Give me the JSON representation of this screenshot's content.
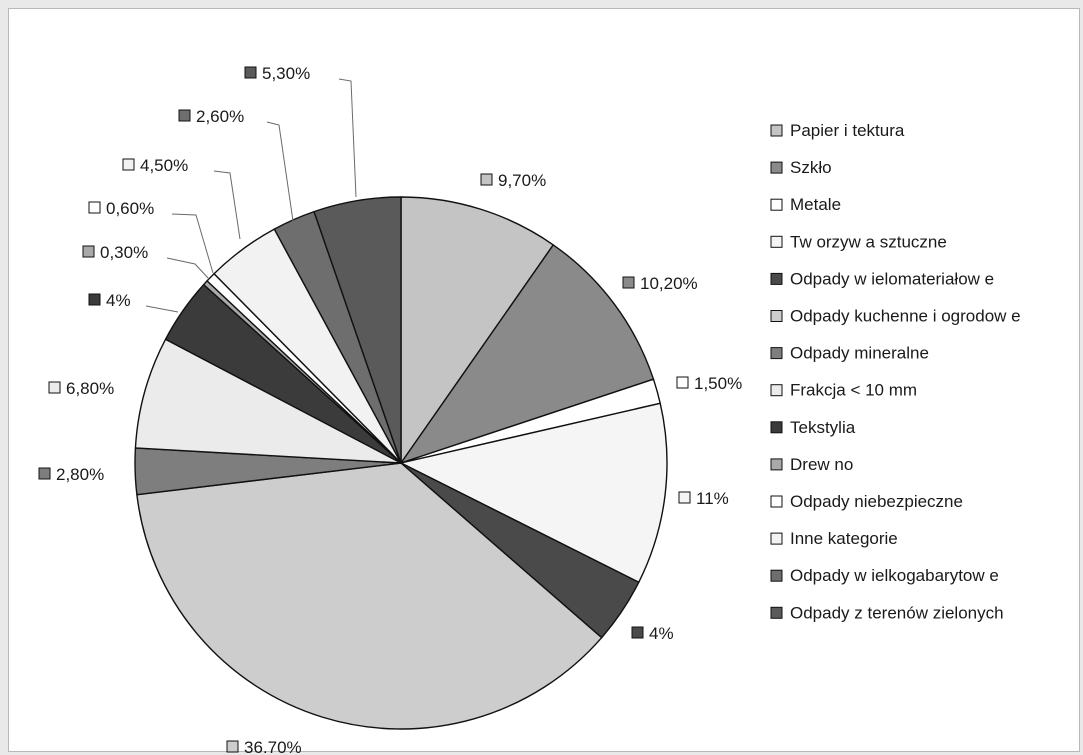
{
  "chart_data": {
    "type": "pie",
    "start_angle_deg": 0,
    "direction": "clockwise",
    "legend_position": "right",
    "slices": [
      {
        "name": "Papier i tektura",
        "value": 9.7,
        "label": "9,70%",
        "color": "#c4c4c4"
      },
      {
        "name": "Szkło",
        "value": 10.2,
        "label": "10,20%",
        "color": "#8a8a8a"
      },
      {
        "name": "Metale",
        "value": 1.5,
        "label": "1,50%",
        "color": "#ffffff"
      },
      {
        "name": "Tworzywa sztuczne",
        "value": 11,
        "label": "11%",
        "color": "#f5f5f5"
      },
      {
        "name": "Odpady wielomateriałowe",
        "value": 4,
        "label": "4%",
        "color": "#4a4a4a"
      },
      {
        "name": "Odpady kuchenne i ogrodowe",
        "value": 36.7,
        "label": "36,70%",
        "color": "#cdcdcd"
      },
      {
        "name": "Odpady mineralne",
        "value": 2.8,
        "label": "2,80%",
        "color": "#7e7e7e"
      },
      {
        "name": "Frakcja < 10 mm",
        "value": 6.8,
        "label": "6,80%",
        "color": "#ebebeb"
      },
      {
        "name": "Tekstylia",
        "value": 4,
        "label": "4%",
        "color": "#3b3b3b"
      },
      {
        "name": "Drewno",
        "value": 0.3,
        "label": "0,30%",
        "color": "#a9a9a9"
      },
      {
        "name": "Odpady niebezpieczne",
        "value": 0.6,
        "label": "0,60%",
        "color": "#ffffff"
      },
      {
        "name": "Inne kategorie",
        "value": 4.5,
        "label": "4,50%",
        "color": "#f2f2f2"
      },
      {
        "name": "Odpady wielkogabarytowe",
        "value": 2.6,
        "label": "2,60%",
        "color": "#6e6e6e"
      },
      {
        "name": "Odpady z terenów zielonych",
        "value": 5.3,
        "label": "5,30%",
        "color": "#5a5a5a"
      }
    ],
    "legend": [
      "Papier i tektura",
      "Szkło",
      "Metale",
      "Tw orzyw a sztuczne",
      "Odpady w ielomateriałow e",
      "Odpady kuchenne i ogrodow e",
      "Odpady mineralne",
      "Frakcja < 10 mm",
      "Tekstylia",
      "Drew no",
      "Odpady niebezpieczne",
      "Inne kategorie",
      "Odpady w ielkogabarytow e",
      "Odpady z terenów zielonych"
    ]
  }
}
